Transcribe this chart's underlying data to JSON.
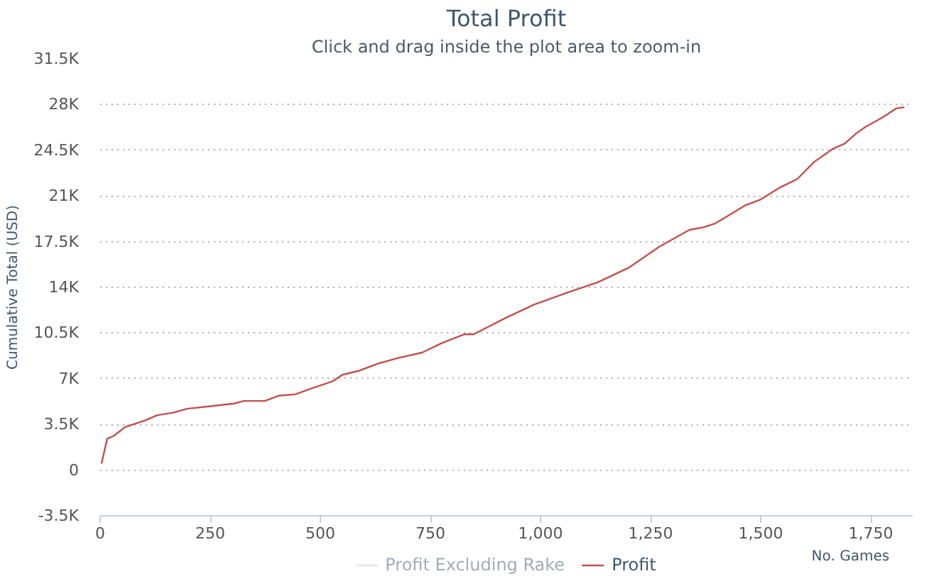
{
  "chart_data": {
    "type": "line",
    "title": "Total Profit",
    "subtitle": "Click and drag inside the plot area to zoom-in",
    "xlabel": "No. Games",
    "ylabel": "Cumulative Total (USD)",
    "x": [
      3,
      16,
      30,
      57,
      102,
      129,
      166,
      198,
      251,
      305,
      326,
      374,
      406,
      443,
      475,
      528,
      550,
      587,
      635,
      678,
      731,
      774,
      827,
      848,
      923,
      987,
      1061,
      1131,
      1200,
      1269,
      1338,
      1370,
      1397,
      1466,
      1498,
      1541,
      1583,
      1621,
      1663,
      1690,
      1717,
      1738,
      1776,
      1807,
      1826
    ],
    "series": [
      {
        "name": "Profit Excluding Rake",
        "color": "#cccccc",
        "values": [
          null,
          null,
          null,
          null,
          null,
          null,
          null,
          null,
          null,
          null,
          null,
          null,
          null,
          null,
          null,
          null,
          null,
          null,
          null,
          null,
          null,
          null,
          null,
          null,
          null,
          null,
          null,
          null,
          null,
          null,
          null,
          null,
          null,
          null,
          null,
          null,
          null,
          null,
          null,
          null,
          null,
          null,
          null,
          null,
          null
        ]
      },
      {
        "name": "Profit",
        "color": "#c0504d",
        "values": [
          500,
          2400,
          2600,
          3300,
          3800,
          4200,
          4400,
          4700,
          4900,
          5100,
          5300,
          5300,
          5700,
          5800,
          6200,
          6800,
          7300,
          7600,
          8200,
          8600,
          9000,
          9700,
          10400,
          10400,
          11700,
          12700,
          13600,
          14400,
          15500,
          17100,
          18400,
          18600,
          18900,
          20300,
          20700,
          21600,
          22300,
          23600,
          24600,
          25000,
          25800,
          26300,
          27000,
          27700,
          27800
        ]
      }
    ],
    "xlim": [
      0,
      1845
    ],
    "xticks": [
      0,
      250,
      500,
      750,
      {
        "value": 1000,
        "label": "1,000"
      },
      {
        "value": 1250,
        "label": "1,250"
      },
      {
        "value": 1500,
        "label": "1,500"
      },
      {
        "value": 1750,
        "label": "1,750"
      }
    ],
    "ylim": [
      -3500,
      31500
    ],
    "yticks": [
      {
        "value": -3500,
        "label": "-3.5K"
      },
      0,
      {
        "value": 3500,
        "label": "3.5K"
      },
      {
        "value": 7000,
        "label": "7K"
      },
      {
        "value": 10500,
        "label": "10.5K"
      },
      {
        "value": 14000,
        "label": "14K"
      },
      {
        "value": 17500,
        "label": "17.5K"
      },
      {
        "value": 21000,
        "label": "21K"
      },
      {
        "value": 24500,
        "label": "24.5K"
      },
      {
        "value": 28000,
        "label": "28K"
      },
      {
        "value": 31500,
        "label": "31.5K"
      }
    ],
    "grid": "y",
    "legend": "bottom"
  }
}
